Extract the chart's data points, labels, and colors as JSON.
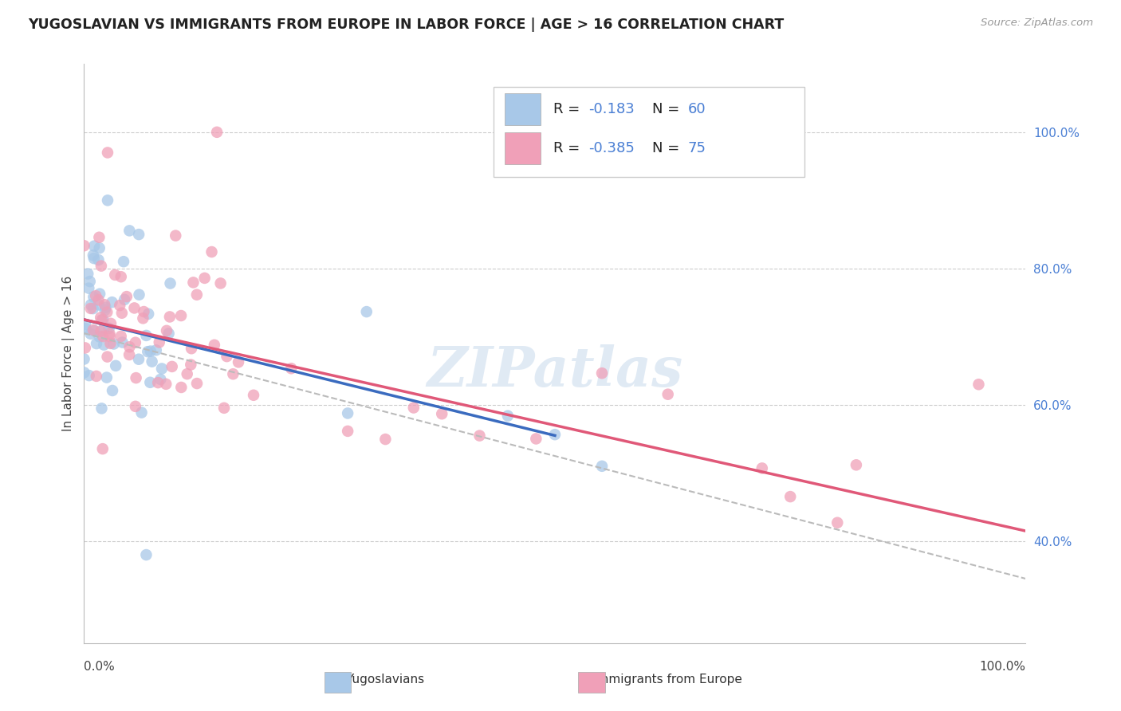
{
  "title": "YUGOSLAVIAN VS IMMIGRANTS FROM EUROPE IN LABOR FORCE | AGE > 16 CORRELATION CHART",
  "source": "Source: ZipAtlas.com",
  "ylabel": "In Labor Force | Age > 16",
  "legend_label1": "Yugoslavians",
  "legend_label2": "Immigrants from Europe",
  "watermark": "ZIPatlas",
  "color_blue": "#a8c8e8",
  "color_pink": "#f0a0b8",
  "color_blue_line": "#3a6bbf",
  "color_pink_line": "#e05878",
  "color_gray_dashed": "#bbbbbb",
  "ytick_values": [
    0.4,
    0.6,
    0.8,
    1.0
  ],
  "xlim": [
    0.0,
    1.0
  ],
  "ylim": [
    0.25,
    1.1
  ],
  "blue_line_x0": 0.0,
  "blue_line_y0": 0.725,
  "blue_line_x1": 0.5,
  "blue_line_y1": 0.555,
  "pink_line_x0": 0.0,
  "pink_line_y0": 0.725,
  "pink_line_x1": 1.0,
  "pink_line_y1": 0.415,
  "gray_line_x0": 0.0,
  "gray_line_y0": 0.705,
  "gray_line_x1": 1.0,
  "gray_line_y1": 0.345,
  "legend_R1": "-0.183",
  "legend_N1": "60",
  "legend_R2": "-0.385",
  "legend_N2": "75"
}
